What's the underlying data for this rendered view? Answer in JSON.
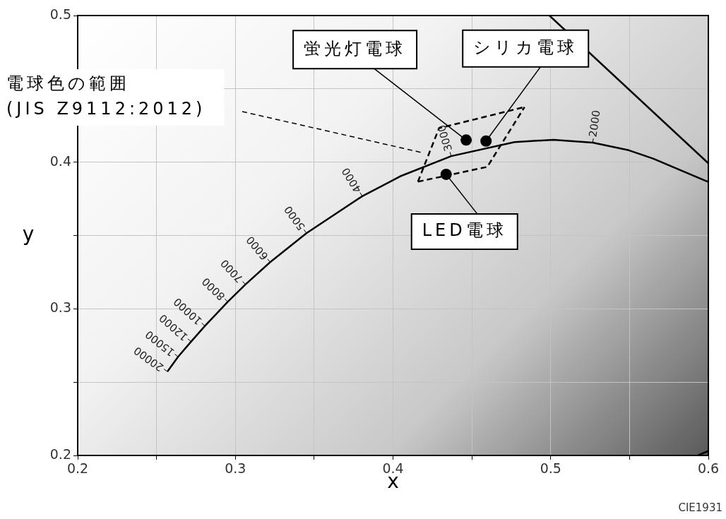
{
  "chart_data": {
    "type": "line",
    "xlabel": "x",
    "ylabel": "y",
    "xlim": [
      0.2,
      0.6
    ],
    "ylim": [
      0.2,
      0.5
    ],
    "xticks": [
      0.2,
      {
        "value": 0.25,
        "label": null
      },
      0.3,
      {
        "value": 0.35,
        "label": null
      },
      0.4,
      {
        "value": 0.45,
        "label": null
      },
      0.5,
      {
        "value": 0.55,
        "label": null
      },
      0.6
    ],
    "yticks": [
      0.2,
      {
        "value": 0.25,
        "label": null
      },
      0.3,
      {
        "value": 0.35,
        "label": null
      },
      0.4,
      {
        "value": 0.45,
        "label": null
      },
      0.5
    ],
    "grid": true,
    "series": [
      {
        "type": "line",
        "color": "#000000",
        "line_style": "solid",
        "marker": "none",
        "x": [
          0.2569,
          0.2637,
          0.2719,
          0.2807,
          0.2952,
          0.3064,
          0.3221,
          0.3451,
          0.3805,
          0.4053,
          0.4369,
          0.477,
          0.5018,
          0.5267,
          0.5496,
          0.565,
          0.6
        ],
        "values": [
          0.2572,
          0.2673,
          0.2776,
          0.2883,
          0.3048,
          0.3166,
          0.3318,
          0.3516,
          0.3768,
          0.3907,
          0.4041,
          0.4137,
          0.4153,
          0.4133,
          0.4081,
          0.4024,
          0.3865
        ]
      },
      {
        "type": "line",
        "color": "#000000",
        "line_style": "dashed",
        "marker": "none",
        "x": [
          0.4158,
          0.4292,
          0.4834
        ],
        "values": [
          0.3867,
          0.4232,
          0.4376
        ]
      },
      {
        "type": "line",
        "color": "#000000",
        "line_style": "dashed",
        "marker": "none",
        "x": [
          0.4158,
          0.4598,
          0.4834
        ],
        "values": [
          0.3867,
          0.3968,
          0.4376
        ]
      },
      {
        "type": "scatter",
        "color": "#000000",
        "marker": "circle",
        "x": [
          0.4464,
          0.459,
          0.4337
        ],
        "values": [
          0.4151,
          0.4144,
          0.3917
        ]
      },
      {
        "type": "line",
        "color": "#000000",
        "line_style": "solid",
        "marker": "none",
        "x": [
          0.4992,
          0.6
        ],
        "values": [
          0.5,
          0.3992
        ]
      },
      {
        "type": "line",
        "color": "#000000",
        "line_style": "solid",
        "marker": "none",
        "x": [
          0.5933,
          0.6
        ],
        "values": [
          0.2,
          0.203
        ]
      }
    ],
    "annotations": [
      {
        "text": "20000",
        "x": 0.2569,
        "y": 0.2572
      },
      {
        "text": "15000",
        "x": 0.2637,
        "y": 0.2673
      },
      {
        "text": "12000",
        "x": 0.2719,
        "y": 0.2776
      },
      {
        "text": "10000",
        "x": 0.2807,
        "y": 0.2883
      },
      {
        "text": "8000",
        "x": 0.2952,
        "y": 0.3048
      },
      {
        "text": "7000",
        "x": 0.3064,
        "y": 0.3166
      },
      {
        "text": "6000",
        "x": 0.3221,
        "y": 0.3318
      },
      {
        "text": "5000",
        "x": 0.3451,
        "y": 0.3516
      },
      {
        "text": "4000",
        "x": 0.3805,
        "y": 0.3768
      },
      {
        "text": "3000",
        "x": 0.4369,
        "y": 0.4041
      },
      {
        "text": "2000",
        "x": 0.5267,
        "y": 0.4133
      },
      "電球色の範囲\n(JIS Z9112:2012)",
      {
        "text": "蛍光灯電球",
        "x": 0.4464,
        "y": 0.4151
      },
      {
        "text": "シリカ電球",
        "x": 0.459,
        "y": 0.4144
      },
      {
        "text": "LED電球",
        "x": 0.4337,
        "y": 0.3917
      },
      "CIE1931"
    ]
  }
}
